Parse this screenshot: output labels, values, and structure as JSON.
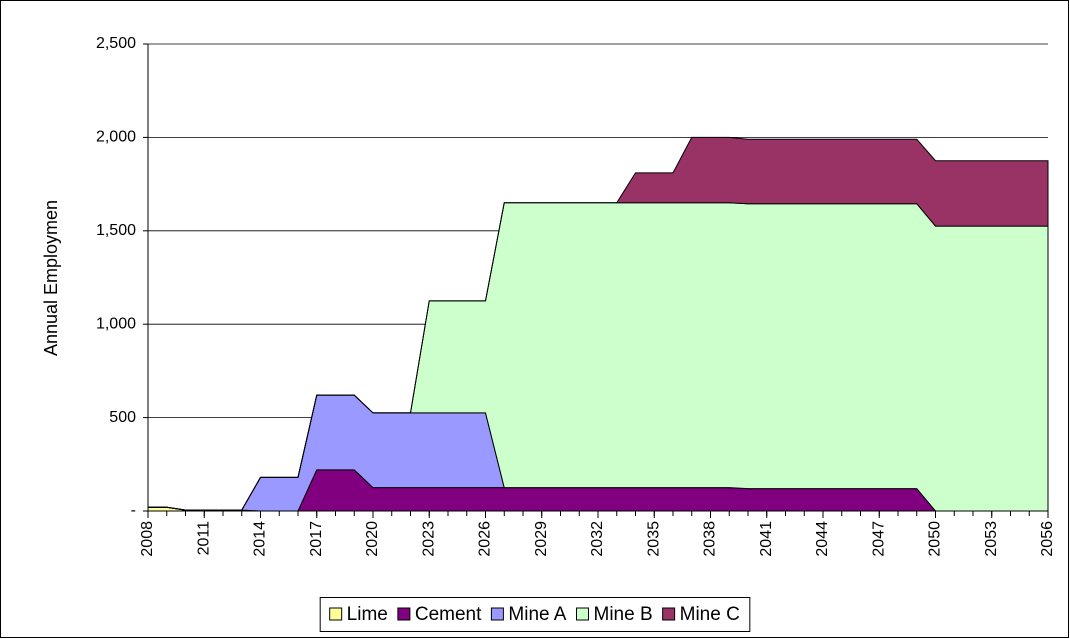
{
  "chart_data": {
    "type": "stacked-area",
    "y_label": "Annual Employmen",
    "x": [
      2008,
      2009,
      2010,
      2011,
      2012,
      2013,
      2014,
      2015,
      2016,
      2017,
      2018,
      2019,
      2020,
      2021,
      2022,
      2023,
      2024,
      2025,
      2026,
      2027,
      2028,
      2029,
      2030,
      2031,
      2032,
      2033,
      2034,
      2035,
      2036,
      2037,
      2038,
      2039,
      2040,
      2041,
      2042,
      2043,
      2044,
      2045,
      2046,
      2047,
      2048,
      2049,
      2050,
      2051,
      2052,
      2053,
      2054,
      2055,
      2056
    ],
    "xlim": [
      2008,
      2056
    ],
    "xticks": [
      2008,
      2011,
      2014,
      2017,
      2020,
      2023,
      2026,
      2029,
      2032,
      2035,
      2038,
      2041,
      2044,
      2047,
      2050,
      2053,
      2056
    ],
    "ylim": [
      0,
      2500
    ],
    "yticks": [
      {
        "value": 0,
        "label": "-"
      },
      500,
      {
        "value": 1000,
        "label": "1,000"
      },
      {
        "value": 1500,
        "label": "1,500"
      },
      {
        "value": 2000,
        "label": "2,000"
      },
      {
        "value": 2500,
        "label": "2,500"
      }
    ],
    "grid": true,
    "legend": "bottom",
    "series": [
      {
        "name": "Lime",
        "color": "#ffff99",
        "values": [
          20,
          20,
          5,
          5,
          5,
          5,
          0,
          0,
          0,
          0,
          0,
          0,
          0,
          0,
          0,
          0,
          0,
          0,
          0,
          0,
          0,
          0,
          0,
          0,
          0,
          0,
          0,
          0,
          0,
          0,
          0,
          0,
          0,
          0,
          0,
          0,
          0,
          0,
          0,
          0,
          0,
          0,
          0,
          0,
          0,
          0,
          0,
          0,
          0
        ]
      },
      {
        "name": "Cement",
        "color": "#800080",
        "values": [
          0,
          0,
          0,
          0,
          0,
          0,
          0,
          0,
          0,
          220,
          220,
          220,
          125,
          125,
          125,
          125,
          125,
          125,
          125,
          125,
          125,
          125,
          125,
          125,
          125,
          125,
          125,
          125,
          125,
          125,
          125,
          125,
          120,
          120,
          120,
          120,
          120,
          120,
          120,
          120,
          120,
          120,
          0,
          0,
          0,
          0,
          0,
          0,
          0
        ]
      },
      {
        "name": "Mine A",
        "color": "#9999ff",
        "values": [
          0,
          0,
          0,
          0,
          0,
          0,
          180,
          180,
          180,
          400,
          400,
          400,
          400,
          400,
          400,
          400,
          400,
          400,
          400,
          0,
          0,
          0,
          0,
          0,
          0,
          0,
          0,
          0,
          0,
          0,
          0,
          0,
          0,
          0,
          0,
          0,
          0,
          0,
          0,
          0,
          0,
          0,
          0,
          0,
          0,
          0,
          0,
          0,
          0
        ]
      },
      {
        "name": "Mine B",
        "color": "#ccffcc",
        "values": [
          0,
          0,
          0,
          0,
          0,
          0,
          0,
          0,
          0,
          0,
          0,
          0,
          0,
          0,
          0,
          600,
          600,
          600,
          600,
          1525,
          1525,
          1525,
          1525,
          1525,
          1525,
          1525,
          1525,
          1525,
          1525,
          1525,
          1525,
          1525,
          1525,
          1525,
          1525,
          1525,
          1525,
          1525,
          1525,
          1525,
          1525,
          1525,
          1525,
          1525,
          1525,
          1525,
          1525,
          1525,
          1525
        ]
      },
      {
        "name": "Mine C",
        "color": "#993366",
        "values": [
          0,
          0,
          0,
          0,
          0,
          0,
          0,
          0,
          0,
          0,
          0,
          0,
          0,
          0,
          0,
          0,
          0,
          0,
          0,
          0,
          0,
          0,
          0,
          0,
          0,
          0,
          160,
          160,
          160,
          350,
          350,
          350,
          345,
          345,
          345,
          345,
          345,
          345,
          345,
          345,
          345,
          345,
          350,
          350,
          350,
          350,
          350,
          350,
          350
        ]
      }
    ]
  }
}
